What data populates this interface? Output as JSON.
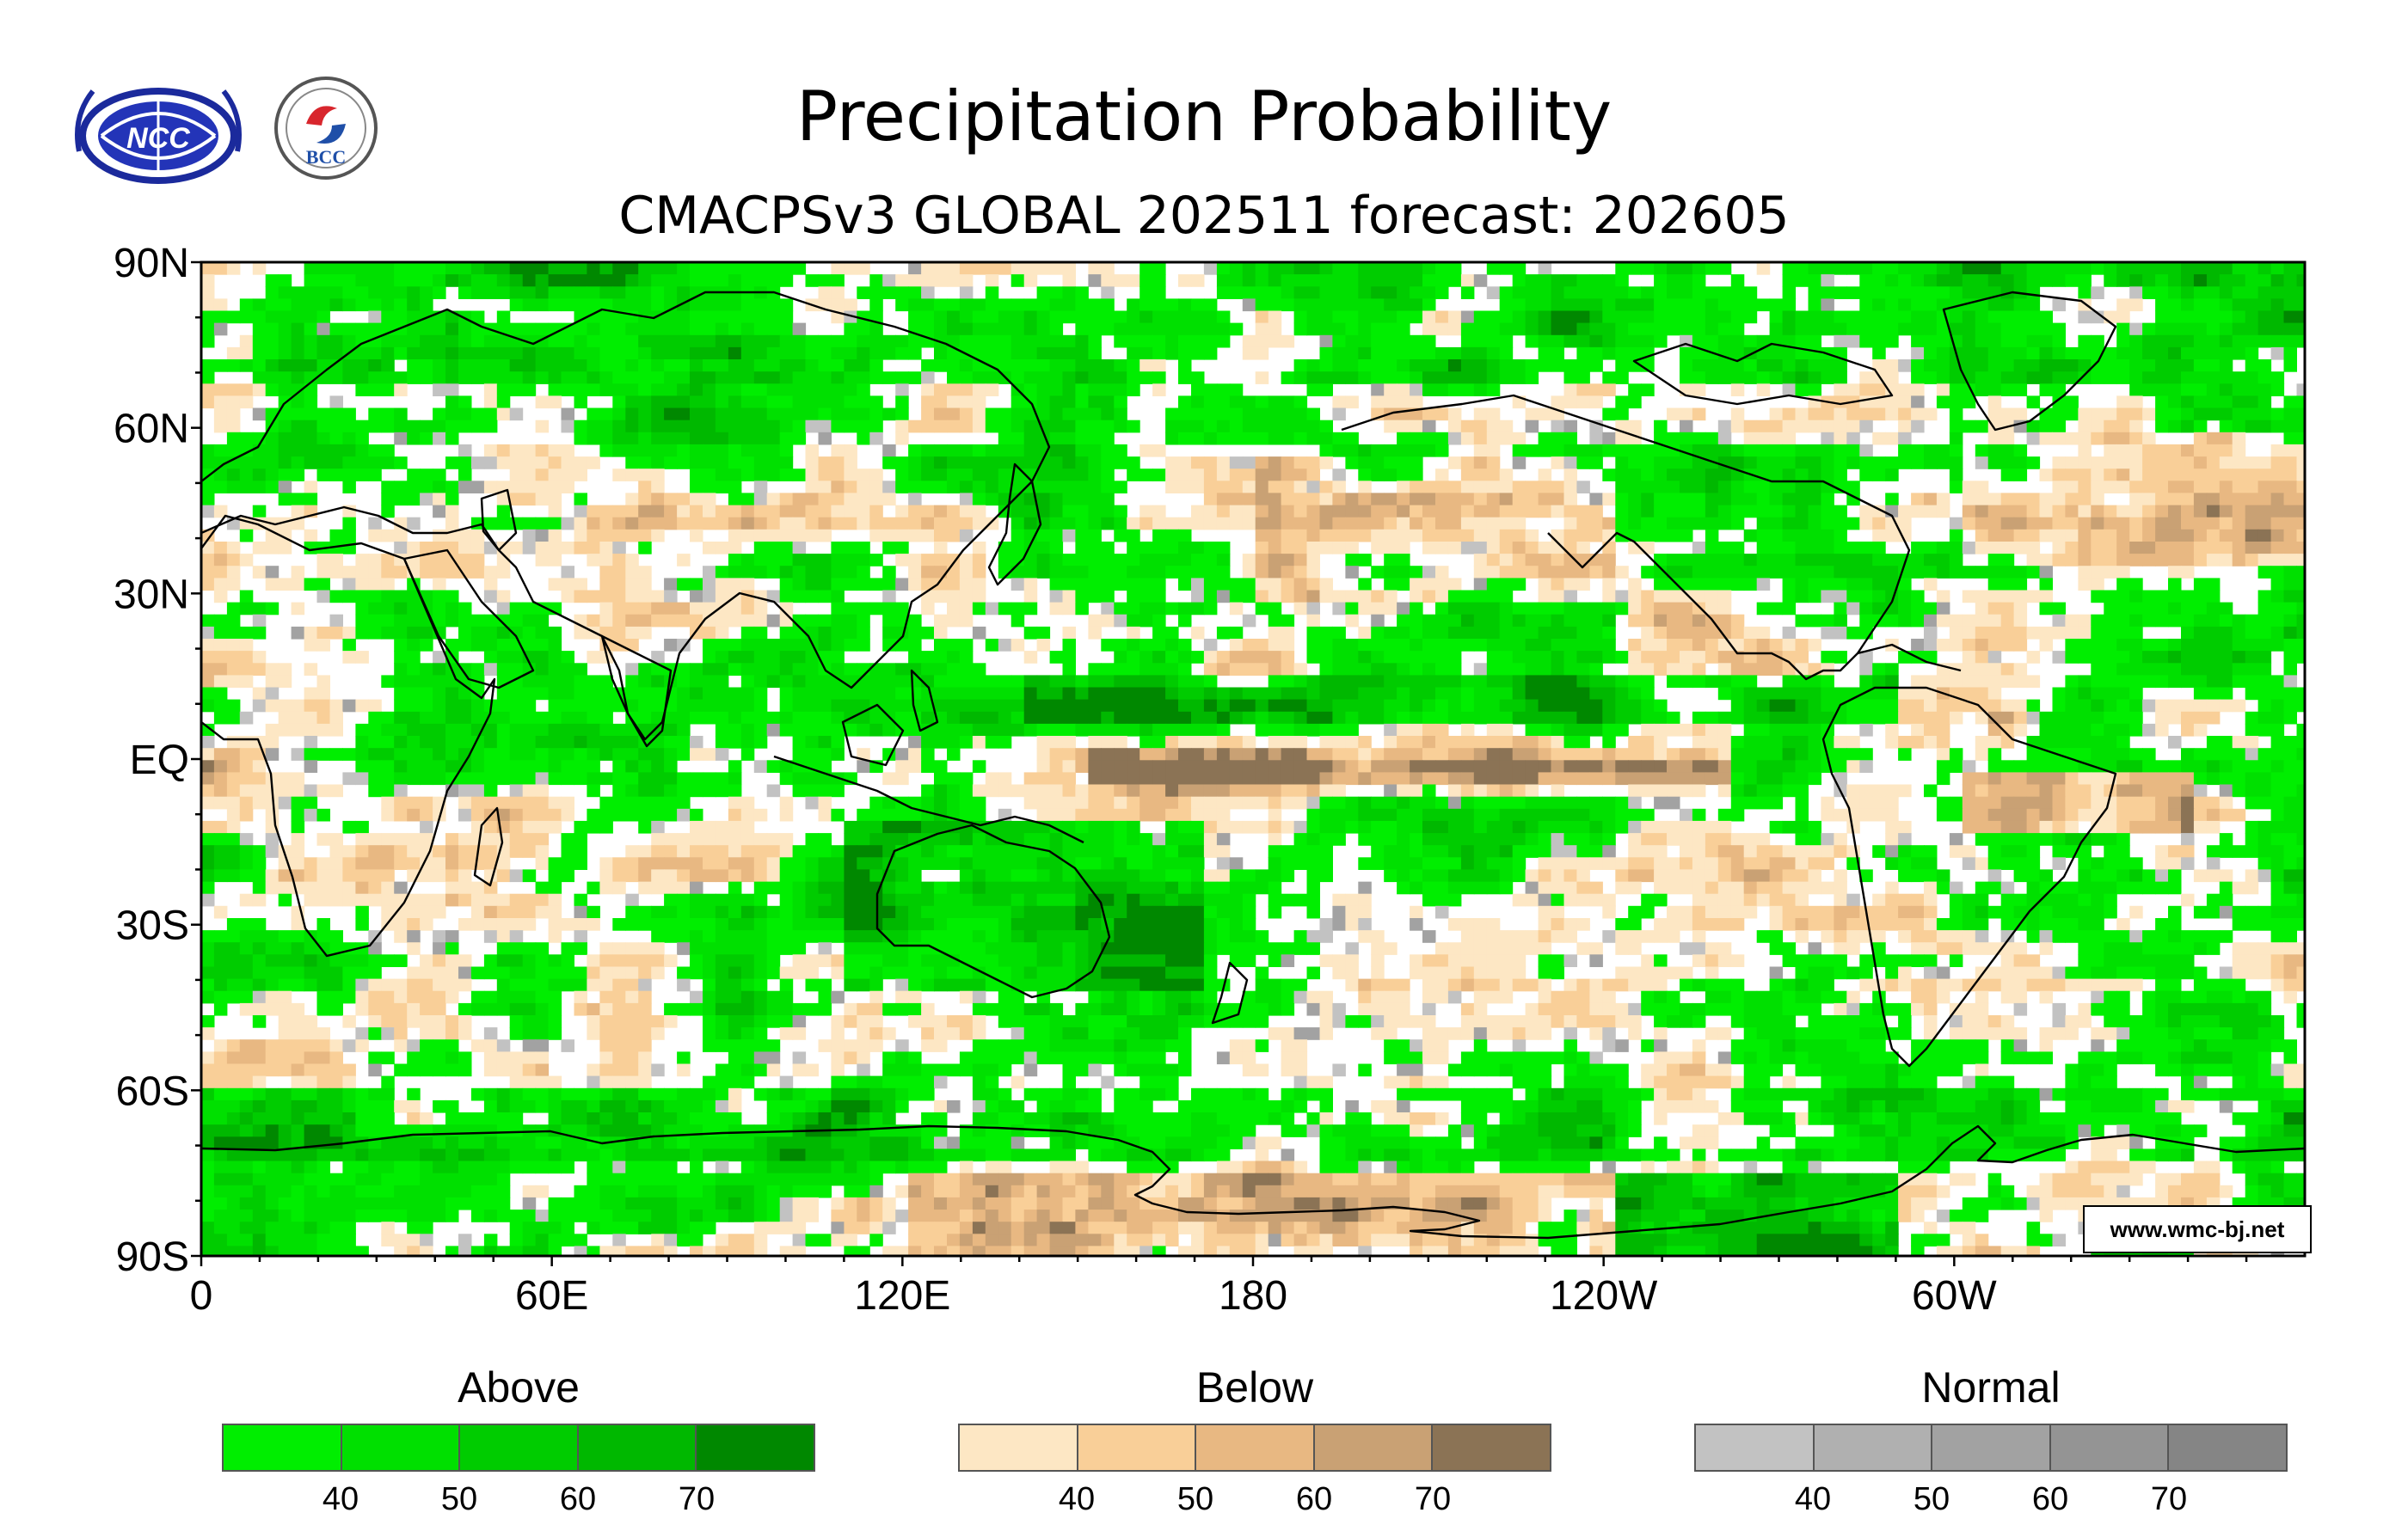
{
  "header": {
    "title": "Precipitation Probability",
    "subtitle": "CMACPSv3 GLOBAL 202511 forecast: 202605"
  },
  "logos": [
    {
      "name": "ncc-logo",
      "text": "NCC"
    },
    {
      "name": "bcc-logo",
      "text": "BCC"
    }
  ],
  "map": {
    "lat_labels": [
      "90N",
      "60N",
      "30N",
      "EQ",
      "30S",
      "60S",
      "90S"
    ],
    "lon_labels": [
      "0",
      "60E",
      "120E",
      "180",
      "120W",
      "60W"
    ],
    "lat_range": [
      -90,
      90
    ],
    "lon_range": [
      0,
      360
    ],
    "credit": "www.wmc-bj.net"
  },
  "legend": [
    {
      "title": "Above",
      "ticks": [
        "40",
        "50",
        "60",
        "70"
      ],
      "colors": [
        "#00ee00",
        "#00e000",
        "#00cc00",
        "#00b800",
        "#008800"
      ]
    },
    {
      "title": "Below",
      "ticks": [
        "40",
        "50",
        "60",
        "70"
      ],
      "colors": [
        "#fde7c4",
        "#f9cf98",
        "#e8b882",
        "#c9a174",
        "#8b7355"
      ]
    },
    {
      "title": "Normal",
      "ticks": [
        "40",
        "50",
        "60",
        "70"
      ],
      "colors": [
        "#c2c2c2",
        "#b0b0b0",
        "#a2a2a2",
        "#949494",
        "#858585"
      ]
    }
  ]
}
